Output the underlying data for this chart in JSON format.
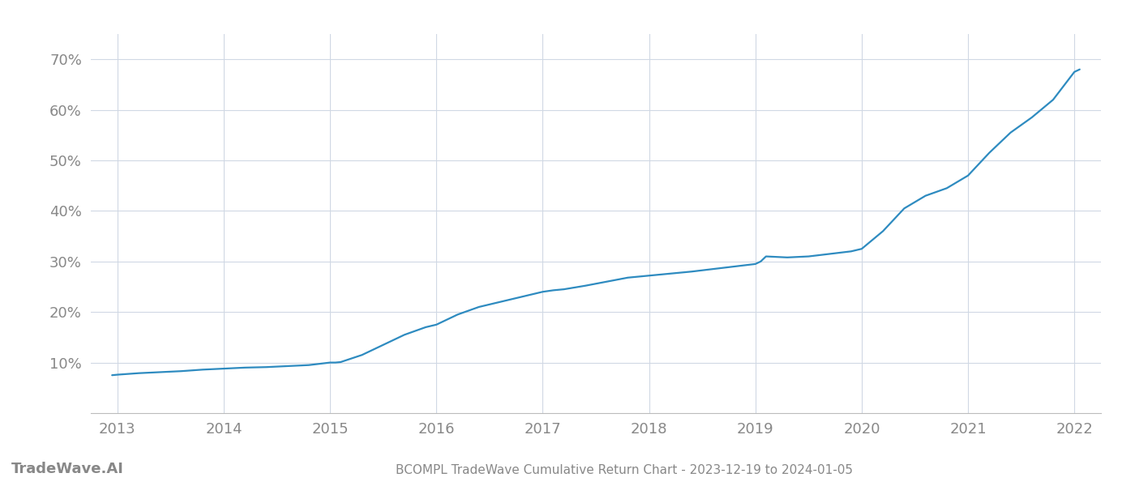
{
  "title": "BCOMPL TradeWave Cumulative Return Chart - 2023-12-19 to 2024-01-05",
  "watermark": "TradeWave.AI",
  "line_color": "#2e8bc0",
  "background_color": "#ffffff",
  "grid_color": "#d0d8e4",
  "x_years": [
    2013,
    2014,
    2015,
    2016,
    2017,
    2018,
    2019,
    2020,
    2021,
    2022
  ],
  "x_data": [
    2012.95,
    2013.0,
    2013.2,
    2013.4,
    2013.6,
    2013.8,
    2014.0,
    2014.2,
    2014.4,
    2014.6,
    2014.8,
    2015.0,
    2015.05,
    2015.1,
    2015.3,
    2015.5,
    2015.7,
    2015.9,
    2016.0,
    2016.2,
    2016.4,
    2016.6,
    2016.8,
    2017.0,
    2017.1,
    2017.2,
    2017.4,
    2017.6,
    2017.8,
    2018.0,
    2018.2,
    2018.4,
    2018.6,
    2018.8,
    2019.0,
    2019.05,
    2019.1,
    2019.3,
    2019.5,
    2019.7,
    2019.9,
    2020.0,
    2020.2,
    2020.4,
    2020.6,
    2020.8,
    2021.0,
    2021.2,
    2021.4,
    2021.6,
    2021.8,
    2022.0,
    2022.05
  ],
  "y_data": [
    7.5,
    7.6,
    7.9,
    8.1,
    8.3,
    8.6,
    8.8,
    9.0,
    9.1,
    9.3,
    9.5,
    10.0,
    10.0,
    10.1,
    11.5,
    13.5,
    15.5,
    17.0,
    17.5,
    19.5,
    21.0,
    22.0,
    23.0,
    24.0,
    24.3,
    24.5,
    25.2,
    26.0,
    26.8,
    27.2,
    27.6,
    28.0,
    28.5,
    29.0,
    29.5,
    30.0,
    31.0,
    30.8,
    31.0,
    31.5,
    32.0,
    32.5,
    36.0,
    40.5,
    43.0,
    44.5,
    47.0,
    51.5,
    55.5,
    58.5,
    62.0,
    67.5,
    68.0
  ],
  "yticks": [
    10,
    20,
    30,
    40,
    50,
    60,
    70
  ],
  "ylim": [
    0,
    75
  ],
  "xlim": [
    2012.75,
    2022.25
  ],
  "text_color": "#888888",
  "title_color": "#888888",
  "title_fontsize": 11,
  "tick_fontsize": 13,
  "watermark_fontsize": 13,
  "line_width": 1.6
}
